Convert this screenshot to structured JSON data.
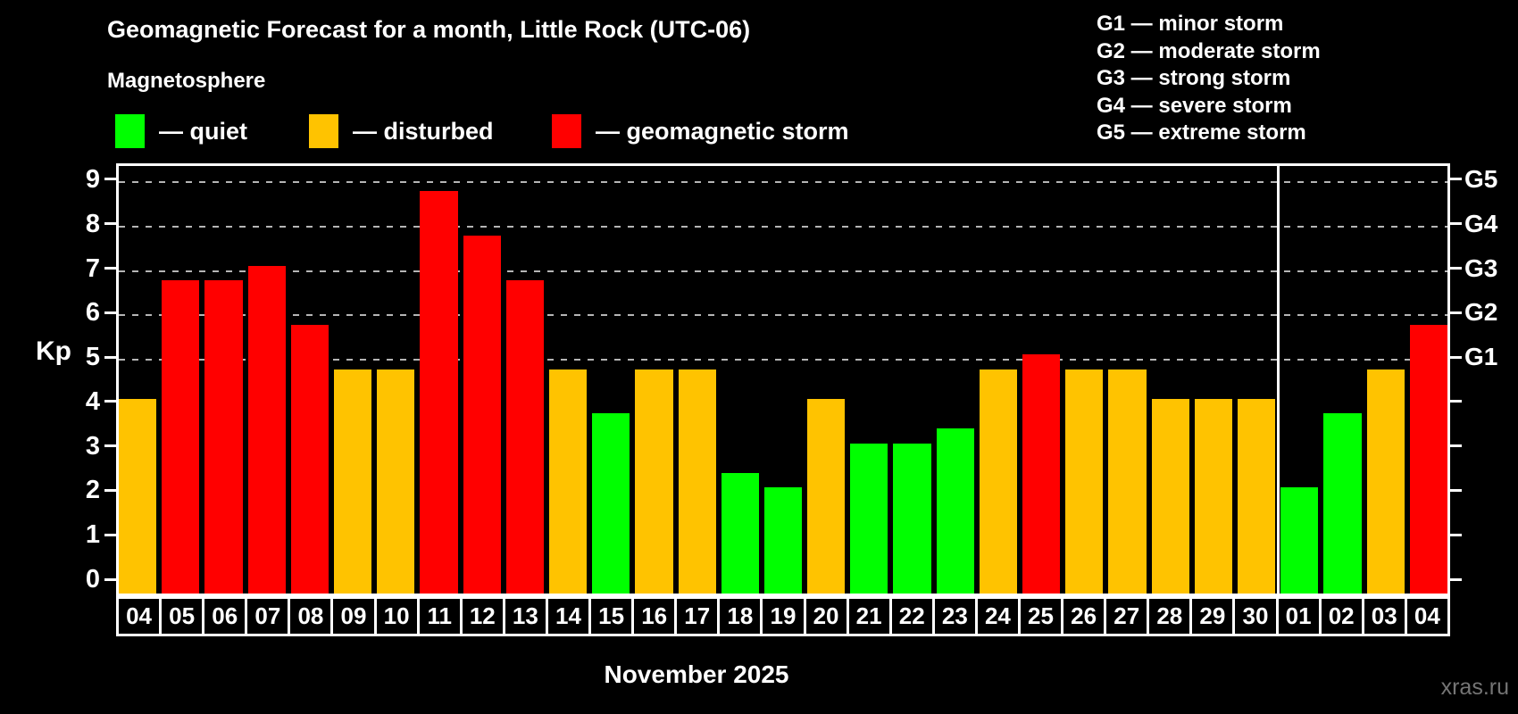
{
  "header": {
    "title": "Geomagnetic Forecast for a month, Little Rock (UTC-06)",
    "subtitle": "Magnetosphere"
  },
  "legend": {
    "items": [
      {
        "key": "quiet",
        "label": "— quiet"
      },
      {
        "key": "disturbed",
        "label": "— disturbed"
      },
      {
        "key": "storm",
        "label": "— geomagnetic storm"
      }
    ]
  },
  "g_scale": {
    "items": [
      "G1 — minor storm",
      "G2 — moderate storm",
      "G3 — strong storm",
      "G4 — severe storm",
      "G5 — extreme storm"
    ]
  },
  "colors": {
    "quiet": "#00ff00",
    "disturbed": "#ffc300",
    "storm": "#ff0000",
    "background": "#000000",
    "text": "#ffffff",
    "grid": "#b5b5b5",
    "watermark": "#757575"
  },
  "chart_data": {
    "type": "bar",
    "title": "Geomagnetic Forecast for a month, Little Rock (UTC-06)",
    "ylabel": "Kp",
    "xlabel": "November 2025",
    "ylim": [
      0,
      9
    ],
    "yticks": [
      0,
      1,
      2,
      3,
      4,
      5,
      6,
      7,
      8,
      9
    ],
    "gridlines_at_kp": [
      5,
      6,
      7,
      8,
      9
    ],
    "grid": "horizontal dashed lines at storm levels G1–G5",
    "legend_position": "top-left",
    "right_axis": [
      {
        "kp": 5,
        "label": "G1"
      },
      {
        "kp": 6,
        "label": "G2"
      },
      {
        "kp": 7,
        "label": "G3"
      },
      {
        "kp": 8,
        "label": "G4"
      },
      {
        "kp": 9,
        "label": "G5"
      }
    ],
    "month_separator_after_index": 26,
    "bars": [
      {
        "day": "04",
        "kp": 4.0,
        "status": "disturbed"
      },
      {
        "day": "05",
        "kp": 6.67,
        "status": "storm"
      },
      {
        "day": "06",
        "kp": 6.67,
        "status": "storm"
      },
      {
        "day": "07",
        "kp": 7.0,
        "status": "storm"
      },
      {
        "day": "08",
        "kp": 5.67,
        "status": "storm"
      },
      {
        "day": "09",
        "kp": 4.67,
        "status": "disturbed"
      },
      {
        "day": "10",
        "kp": 4.67,
        "status": "disturbed"
      },
      {
        "day": "11",
        "kp": 8.67,
        "status": "storm"
      },
      {
        "day": "12",
        "kp": 7.67,
        "status": "storm"
      },
      {
        "day": "13",
        "kp": 6.67,
        "status": "storm"
      },
      {
        "day": "14",
        "kp": 4.67,
        "status": "disturbed"
      },
      {
        "day": "15",
        "kp": 3.67,
        "status": "quiet"
      },
      {
        "day": "16",
        "kp": 4.67,
        "status": "disturbed"
      },
      {
        "day": "17",
        "kp": 4.67,
        "status": "disturbed"
      },
      {
        "day": "18",
        "kp": 2.33,
        "status": "quiet"
      },
      {
        "day": "19",
        "kp": 2.0,
        "status": "quiet"
      },
      {
        "day": "20",
        "kp": 4.0,
        "status": "disturbed"
      },
      {
        "day": "21",
        "kp": 3.0,
        "status": "quiet"
      },
      {
        "day": "22",
        "kp": 3.0,
        "status": "quiet"
      },
      {
        "day": "23",
        "kp": 3.33,
        "status": "quiet"
      },
      {
        "day": "24",
        "kp": 4.67,
        "status": "disturbed"
      },
      {
        "day": "25",
        "kp": 5.0,
        "status": "storm"
      },
      {
        "day": "26",
        "kp": 4.67,
        "status": "disturbed"
      },
      {
        "day": "27",
        "kp": 4.67,
        "status": "disturbed"
      },
      {
        "day": "28",
        "kp": 4.0,
        "status": "disturbed"
      },
      {
        "day": "29",
        "kp": 4.0,
        "status": "disturbed"
      },
      {
        "day": "30",
        "kp": 4.0,
        "status": "disturbed"
      },
      {
        "day": "01",
        "kp": 2.0,
        "status": "quiet"
      },
      {
        "day": "02",
        "kp": 3.67,
        "status": "quiet"
      },
      {
        "day": "03",
        "kp": 4.67,
        "status": "disturbed"
      },
      {
        "day": "04",
        "kp": 5.67,
        "status": "storm"
      }
    ]
  },
  "footer": {
    "xaxis_title": "November 2025",
    "watermark": "xras.ru"
  }
}
